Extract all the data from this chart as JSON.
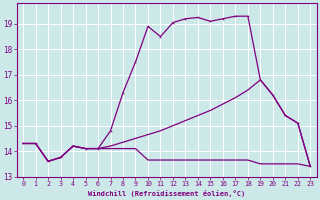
{
  "bg_color": "#cce8e8",
  "grid_color": "#ffffff",
  "line_color": "#800080",
  "xlabel": "Windchill (Refroidissement éolien,°C)",
  "xlim": [
    -0.5,
    23.5
  ],
  "ylim": [
    13.0,
    19.8
  ],
  "xticks": [
    0,
    1,
    2,
    3,
    4,
    5,
    6,
    7,
    8,
    9,
    10,
    11,
    12,
    13,
    14,
    15,
    16,
    17,
    18,
    19,
    20,
    21,
    22,
    23
  ],
  "yticks": [
    13,
    14,
    15,
    16,
    17,
    18,
    19
  ],
  "line1_x": [
    0,
    1,
    2,
    3,
    4,
    5,
    6,
    7,
    8,
    9,
    10,
    11,
    12,
    13,
    14,
    15,
    16,
    17,
    18,
    19,
    20,
    21,
    22,
    23
  ],
  "line1_y": [
    14.3,
    14.3,
    13.6,
    13.75,
    14.2,
    14.1,
    14.1,
    14.8,
    16.3,
    17.5,
    18.9,
    18.5,
    19.05,
    19.2,
    19.25,
    19.1,
    19.2,
    19.3,
    19.3,
    16.8,
    16.2,
    15.4,
    15.1,
    13.4
  ],
  "line2_x": [
    0,
    1,
    2,
    3,
    4,
    5,
    6,
    7,
    8,
    9,
    10,
    11,
    12,
    13,
    14,
    15,
    16,
    17,
    18,
    19,
    20,
    21,
    22,
    23
  ],
  "line2_y": [
    14.3,
    14.3,
    13.6,
    13.75,
    14.2,
    14.1,
    14.1,
    14.2,
    14.35,
    14.5,
    14.65,
    14.8,
    15.0,
    15.2,
    15.4,
    15.6,
    15.85,
    16.1,
    16.4,
    16.8,
    16.2,
    15.4,
    15.1,
    13.4
  ],
  "line3_x": [
    0,
    1,
    2,
    3,
    4,
    5,
    6,
    7,
    8,
    9,
    10,
    11,
    12,
    13,
    14,
    15,
    16,
    17,
    18,
    19,
    20,
    21,
    22,
    23
  ],
  "line3_y": [
    14.3,
    14.3,
    13.6,
    13.75,
    14.2,
    14.1,
    14.1,
    14.1,
    14.1,
    14.1,
    13.65,
    13.65,
    13.65,
    13.65,
    13.65,
    13.65,
    13.65,
    13.65,
    13.65,
    13.5,
    13.5,
    13.5,
    13.5,
    13.4
  ]
}
